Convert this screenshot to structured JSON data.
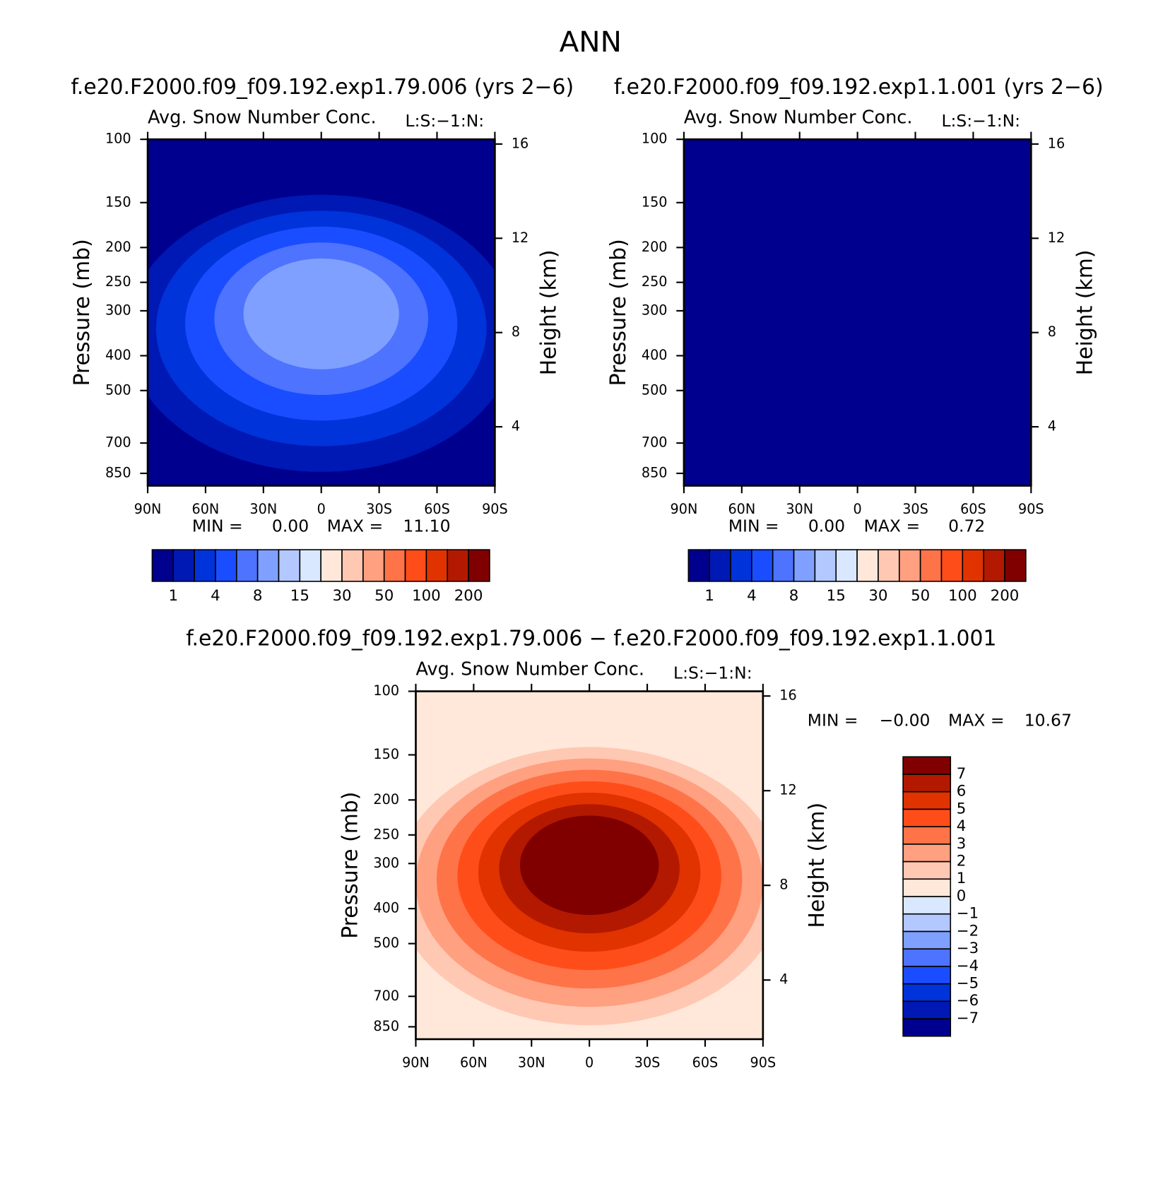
{
  "title": "ANN",
  "chart_data": [
    {
      "type": "contour",
      "title": "f.e20.F2000.f09_f09.192.exp1.79.006 (yrs 2−6)",
      "subtitle": "Avg. Snow Number Conc.",
      "annotation": "L:S:−1:N:",
      "ylabel": "Pressure (mb)",
      "y2label": "Height (km)",
      "xlim": [
        90,
        -90
      ],
      "xticks": [
        {
          "value": 90,
          "label": "90N"
        },
        {
          "value": 60,
          "label": "60N"
        },
        {
          "value": 30,
          "label": "30N"
        },
        0,
        {
          "value": -30,
          "label": "30S"
        },
        {
          "value": -60,
          "label": "60S"
        },
        {
          "value": -90,
          "label": "90S"
        }
      ],
      "ylim": [
        100,
        920
      ],
      "log_y": true,
      "yticks": [
        100,
        150,
        200,
        250,
        300,
        400,
        500,
        700,
        850
      ],
      "y2lim": [
        1.5,
        16.2
      ],
      "y2ticks": [
        4,
        8,
        12,
        16
      ],
      "min_label": "MIN =",
      "min": {
        "value": 0,
        "label": "0.00"
      },
      "max_label": "MAX =",
      "max": {
        "value": 11.1,
        "label": "11.10"
      },
      "levels": [
        1,
        null,
        4,
        null,
        8,
        null,
        15,
        null,
        30,
        null,
        50,
        null,
        100,
        null,
        200
      ],
      "colors": [
        "#00008f",
        "#0019b4",
        "#0033d9",
        "#1a4dff",
        "#4d73ff",
        "#80a0ff",
        "#b3c8ff",
        "#d9e8ff",
        "#ffe8d9",
        "#ffc8b3",
        "#ffa080",
        "#ff7348",
        "#ff4d1a",
        "#e03300",
        "#b31900",
        "#800000"
      ]
    },
    {
      "type": "contour",
      "title": "f.e20.F2000.f09_f09.192.exp1.1.001 (yrs 2−6)",
      "subtitle": "Avg. Snow Number Conc.",
      "annotation": "L:S:−1:N:",
      "ylabel": "Pressure (mb)",
      "y2label": "Height (km)",
      "xlim": [
        90,
        -90
      ],
      "xticks": [
        {
          "value": 90,
          "label": "90N"
        },
        {
          "value": 60,
          "label": "60N"
        },
        {
          "value": 30,
          "label": "30N"
        },
        0,
        {
          "value": -30,
          "label": "30S"
        },
        {
          "value": -60,
          "label": "60S"
        },
        {
          "value": -90,
          "label": "90S"
        }
      ],
      "ylim": [
        100,
        920
      ],
      "log_y": true,
      "yticks": [
        100,
        150,
        200,
        250,
        300,
        400,
        500,
        700,
        850
      ],
      "y2lim": [
        1.5,
        16.2
      ],
      "y2ticks": [
        4,
        8,
        12,
        16
      ],
      "min_label": "MIN =",
      "min": {
        "value": 0,
        "label": "0.00"
      },
      "max_label": "MAX =",
      "max": {
        "value": 0.72,
        "label": "0.72"
      },
      "levels": [
        1,
        null,
        4,
        null,
        8,
        null,
        15,
        null,
        30,
        null,
        50,
        null,
        100,
        null,
        200
      ],
      "colors": [
        "#00008f",
        "#0019b4",
        "#0033d9",
        "#1a4dff",
        "#4d73ff",
        "#80a0ff",
        "#b3c8ff",
        "#d9e8ff",
        "#ffe8d9",
        "#ffc8b3",
        "#ffa080",
        "#ff7348",
        "#ff4d1a",
        "#e03300",
        "#b31900",
        "#800000"
      ]
    },
    {
      "type": "contour",
      "title": "f.e20.F2000.f09_f09.192.exp1.79.006 − f.e20.F2000.f09_f09.192.exp1.1.001",
      "subtitle": "Avg. Snow Number Conc.",
      "annotation": "L:S:−1:N:",
      "ylabel": "Pressure (mb)",
      "y2label": "Height (km)",
      "xlim": [
        90,
        -90
      ],
      "xticks": [
        {
          "value": 90,
          "label": "90N"
        },
        {
          "value": 60,
          "label": "60N"
        },
        {
          "value": 30,
          "label": "30N"
        },
        0,
        {
          "value": -30,
          "label": "30S"
        },
        {
          "value": -60,
          "label": "60S"
        },
        {
          "value": -90,
          "label": "90S"
        }
      ],
      "ylim": [
        100,
        920
      ],
      "log_y": true,
      "yticks": [
        100,
        150,
        200,
        250,
        300,
        400,
        500,
        700,
        850
      ],
      "y2lim": [
        1.5,
        16.2
      ],
      "y2ticks": [
        4,
        8,
        12,
        16
      ],
      "min_label": "MIN =",
      "min": {
        "value": 0,
        "label": "−0.00"
      },
      "max_label": "MAX =",
      "max": {
        "value": 10.67,
        "label": "10.67"
      },
      "levels": [
        {
          "value": -7,
          "label": "−7"
        },
        {
          "value": -6,
          "label": "−6"
        },
        {
          "value": -5,
          "label": "−5"
        },
        {
          "value": -4,
          "label": "−4"
        },
        {
          "value": -3,
          "label": "−3"
        },
        {
          "value": -2,
          "label": "−2"
        },
        {
          "value": -1,
          "label": "−1"
        },
        0,
        1,
        2,
        3,
        4,
        5,
        6,
        7
      ],
      "colors": [
        "#00008f",
        "#0019b4",
        "#0033d9",
        "#1a4dff",
        "#4d73ff",
        "#80a0ff",
        "#b3c8ff",
        "#d9e8ff",
        "#ffe8d9",
        "#ffc8b3",
        "#ffa080",
        "#ff7348",
        "#ff4d1a",
        "#e03300",
        "#b31900",
        "#800000"
      ]
    }
  ]
}
